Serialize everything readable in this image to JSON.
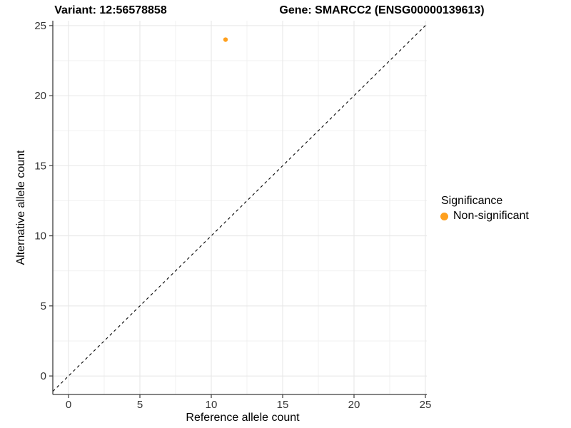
{
  "titles": {
    "variant": "Variant: 12:56578858",
    "gene": "Gene: SMARCC2 (ENSG00000139613)"
  },
  "chart_data": {
    "type": "scatter",
    "title_left": "Variant: 12:56578858",
    "title_right": "Gene: SMARCC2 (ENSG00000139613)",
    "xlabel": "Reference allele count",
    "ylabel": "Alternative allele count",
    "xlim": [
      -1.1,
      25.1
    ],
    "ylim": [
      -1.32,
      25.35
    ],
    "x_ticks": [
      0,
      5,
      10,
      15,
      20,
      25
    ],
    "y_ticks": [
      0,
      5,
      10,
      15,
      20,
      25
    ],
    "grid": true,
    "minor_grid": true,
    "identity_line": {
      "slope": 1,
      "intercept": 0,
      "style": "dashed"
    },
    "series": [
      {
        "name": "Non-significant",
        "color": "#FFA01E",
        "points": [
          {
            "x": 11,
            "y": 24
          }
        ]
      }
    ],
    "legend": {
      "title": "Significance",
      "position": "right",
      "items": [
        {
          "label": "Non-significant",
          "color": "#FFA01E"
        }
      ]
    }
  },
  "colors": {
    "background": "#FFFFFF",
    "point": "#FFA01E",
    "grid_major": "#E6E6E6",
    "grid_minor": "#F1F1F1",
    "axis_line": "#3C3C3C",
    "tick_text": "#333333",
    "identity_line": "#000000"
  }
}
